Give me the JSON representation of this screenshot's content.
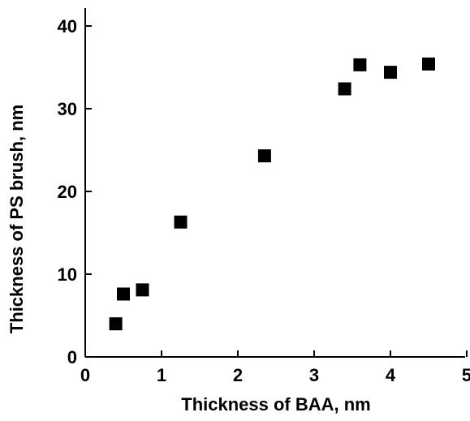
{
  "chart_data": {
    "type": "scatter",
    "title": "",
    "xlabel": "Thickness of BAA, nm",
    "ylabel": "Thickness of PS brush, nm",
    "xlim": [
      0,
      5
    ],
    "ylim": [
      0,
      42
    ],
    "x_ticks": [
      "0",
      "1",
      "2",
      "3",
      "4",
      "5"
    ],
    "y_ticks": [
      "0",
      "10",
      "20",
      "30",
      "40"
    ],
    "grid": false,
    "marker": "square",
    "marker_color": "#000000",
    "series": [
      {
        "x": [
          0.4,
          0.5,
          0.75,
          1.25,
          2.35,
          3.4,
          3.6,
          4.0,
          4.5
        ],
        "y": [
          4.0,
          7.6,
          8.1,
          16.3,
          24.3,
          32.4,
          35.3,
          34.4,
          35.4
        ]
      }
    ]
  }
}
